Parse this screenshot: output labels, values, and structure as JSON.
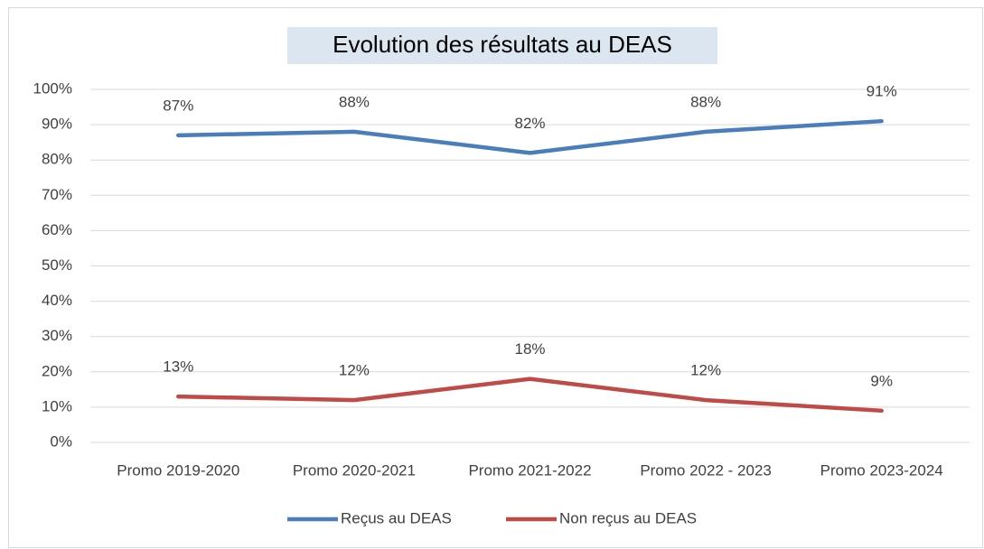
{
  "chart_data": {
    "type": "line",
    "title": "Evolution des résultats au DEAS",
    "categories": [
      "Promo 2019-2020",
      "Promo 2020-2021",
      "Promo 2021-2022",
      "Promo 2022 - 2023",
      "Promo 2023-2024"
    ],
    "series": [
      {
        "name": "Reçus au DEAS",
        "color": "#4a7ebb",
        "values": [
          87,
          88,
          82,
          88,
          91
        ],
        "value_labels": [
          "87%",
          "88%",
          "82%",
          "88%",
          "91%"
        ]
      },
      {
        "name": "Non reçus au DEAS",
        "color": "#be4b48",
        "values": [
          13,
          12,
          18,
          12,
          9
        ],
        "value_labels": [
          "13%",
          "12%",
          "18%",
          "12%",
          "9%"
        ]
      }
    ],
    "ylim": [
      0,
      100
    ],
    "yticks": [
      {
        "value": 0,
        "label": "0%"
      },
      {
        "value": 10,
        "label": "10%"
      },
      {
        "value": 20,
        "label": "20%"
      },
      {
        "value": 30,
        "label": "30%"
      },
      {
        "value": 40,
        "label": "40%"
      },
      {
        "value": 50,
        "label": "50%"
      },
      {
        "value": 60,
        "label": "60%"
      },
      {
        "value": 70,
        "label": "70%"
      },
      {
        "value": 80,
        "label": "80%"
      },
      {
        "value": 90,
        "label": "90%"
      },
      {
        "value": 100,
        "label": "100%"
      }
    ],
    "grid": true,
    "legend": "bottom"
  }
}
